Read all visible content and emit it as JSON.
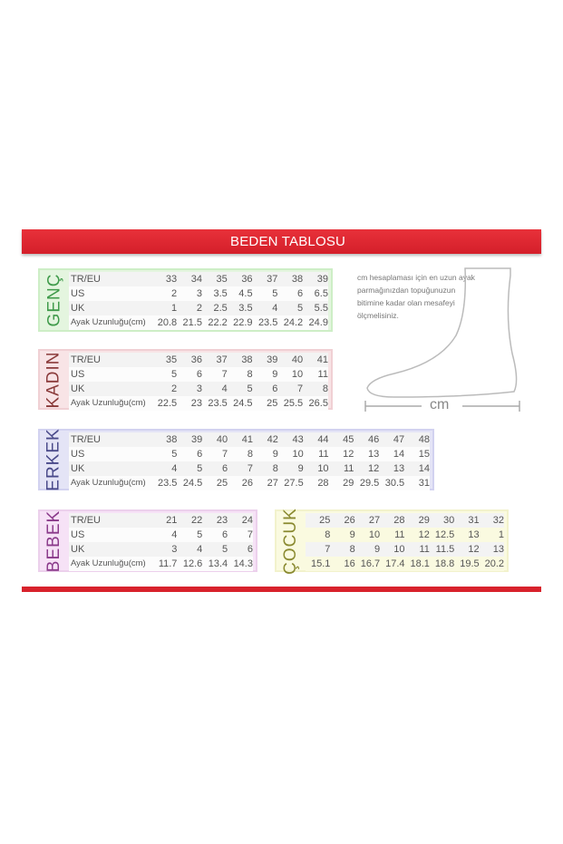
{
  "title": "BEDEN TABLOSU",
  "row_labels": [
    "TR/EU",
    "US",
    "UK",
    "Ayak Uzunluğu(cm)"
  ],
  "tables": [
    {
      "name": "GENÇ",
      "color": "#3f9a4a",
      "bg": "#e4f5df",
      "border": "#cdeec6",
      "rows": [
        [
          "33",
          "34",
          "35",
          "36",
          "37",
          "38",
          "39"
        ],
        [
          "2",
          "3",
          "3.5",
          "4.5",
          "5",
          "6",
          "6.5"
        ],
        [
          "1",
          "2",
          "2.5",
          "3.5",
          "4",
          "5",
          "5.5"
        ],
        [
          "20.8",
          "21.5",
          "22.2",
          "22.9",
          "23.5",
          "24.2",
          "24.9"
        ]
      ]
    },
    {
      "name": "KADIN",
      "color": "#8a3a3a",
      "bg": "#f8e4e6",
      "border": "#f0d0d4",
      "rows": [
        [
          "35",
          "36",
          "37",
          "38",
          "39",
          "40",
          "41"
        ],
        [
          "5",
          "6",
          "7",
          "8",
          "9",
          "10",
          "11"
        ],
        [
          "2",
          "3",
          "4",
          "5",
          "6",
          "7",
          "8"
        ],
        [
          "22.5",
          "23",
          "23.5",
          "24.5",
          "25",
          "25.5",
          "26.5"
        ]
      ]
    },
    {
      "name": "ERKEK",
      "color": "#4a4a8a",
      "bg": "#e4e4f6",
      "border": "#d2d2f0",
      "rows": [
        [
          "38",
          "39",
          "40",
          "41",
          "42",
          "43",
          "44",
          "45",
          "46",
          "47",
          "48"
        ],
        [
          "5",
          "6",
          "7",
          "8",
          "9",
          "10",
          "11",
          "12",
          "13",
          "14",
          "15"
        ],
        [
          "4",
          "5",
          "6",
          "7",
          "8",
          "9",
          "10",
          "11",
          "12",
          "13",
          "14"
        ],
        [
          "23.5",
          "24.5",
          "25",
          "26",
          "27",
          "27.5",
          "28",
          "29",
          "29.5",
          "30.5",
          "31"
        ]
      ]
    },
    {
      "name": "BEBEK",
      "color": "#8a3a8a",
      "bg": "#f6e2f6",
      "border": "#ecd0ec",
      "rows": [
        [
          "21",
          "22",
          "23",
          "24"
        ],
        [
          "4",
          "5",
          "6",
          "7"
        ],
        [
          "3",
          "4",
          "5",
          "6"
        ],
        [
          "11.7",
          "12.6",
          "13.4",
          "14.3"
        ]
      ]
    },
    {
      "name": "ÇOCUK",
      "color": "#8a8a30",
      "bg": "#fafae0",
      "border": "#f2f2cc",
      "no_labels": true,
      "rows": [
        [
          "25",
          "26",
          "27",
          "28",
          "29",
          "30",
          "31",
          "32"
        ],
        [
          "8",
          "9",
          "10",
          "11",
          "12",
          "12.5",
          "13",
          "1"
        ],
        [
          "7",
          "8",
          "9",
          "10",
          "11",
          "11.5",
          "12",
          "13"
        ],
        [
          "15.1",
          "16",
          "16.7",
          "17.4",
          "18.1",
          "18.8",
          "19.5",
          "20.2"
        ]
      ]
    }
  ],
  "note": "cm hesaplaması için en uzun ayak parmağınızdan topuğunuzun bitimine kadar olan mesafeyi ölçmelisiniz.",
  "measure_unit": "cm"
}
